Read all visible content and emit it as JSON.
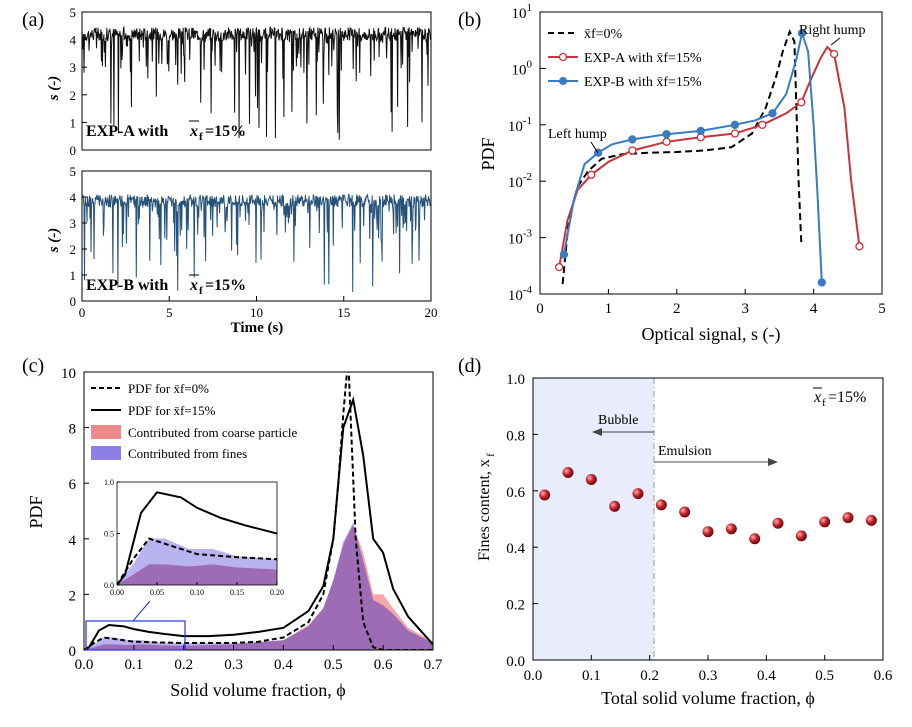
{
  "colors": {
    "expA": "#c8323a",
    "expB": "#3a7bbf",
    "traceA": "#111111",
    "traceB": "#26527a",
    "coarseFill": "#f08a8a",
    "finesFill": "#8c80e8",
    "overlap": "#8a4fa0",
    "dots": "#c0202a",
    "bubbleShade": "#e9ecfb",
    "inset_box": "#2233dd"
  },
  "panels": {
    "a": {
      "label": "(a)",
      "top_caption_bold": "EXP-A with",
      "bottom_caption_bold": "EXP-B with",
      "xf_symbol": "x",
      "xf_sub": "f",
      "xf_value": "=15%",
      "ylabel": "s (-)",
      "xlabel": "Time (s)"
    },
    "b": {
      "label": "(b)",
      "ylabel": "PDF",
      "xlabel": "Optical signal, s (-)",
      "annotations": {
        "left": "Left hump",
        "right": "Right hump"
      }
    },
    "c": {
      "label": "(c)",
      "ylabel": "PDF",
      "xlabel": "Solid volume fraction, ϕ"
    },
    "d": {
      "label": "(d)",
      "ylabel": "Fines content, x",
      "ylabel_sub": "f",
      "xlabel": "Total solid volume fraction, ϕ",
      "tag_value": "=15%",
      "bubble": "Bubble",
      "emulsion": "Emulsion"
    }
  },
  "chart_data": [
    {
      "panel": "a-top",
      "type": "line",
      "title": "",
      "xlabel": "",
      "ylabel": "s (-)",
      "xlim": [
        0,
        20
      ],
      "ylim": [
        0,
        5
      ],
      "x_ticks": [
        "0",
        "5",
        "10",
        "15",
        "20"
      ],
      "y_ticks": [
        "0",
        "1",
        "2",
        "3",
        "4",
        "5"
      ],
      "series": [
        {
          "name": "EXP-A with x̄f=15%",
          "baseline": 4.2,
          "description_level": "fluctuating optical signal mostly near 4 with downward spikes"
        }
      ]
    },
    {
      "panel": "a-bottom",
      "type": "line",
      "title": "",
      "xlabel": "Time (s)",
      "ylabel": "s (-)",
      "xlim": [
        0,
        20
      ],
      "ylim": [
        0,
        5
      ],
      "x_ticks": [
        "0",
        "5",
        "10",
        "15",
        "20"
      ],
      "y_ticks": [
        "0",
        "1",
        "2",
        "3",
        "4",
        "5"
      ],
      "series": [
        {
          "name": "EXP-B with x̄f=15%",
          "baseline": 3.85
        }
      ]
    },
    {
      "panel": "b",
      "type": "line",
      "xlabel": "Optical signal, s (-)",
      "ylabel": "PDF",
      "xlim": [
        0,
        5
      ],
      "ylim": [
        0.0001,
        10
      ],
      "yscale": "log",
      "x_ticks": [
        "0",
        "1",
        "2",
        "3",
        "4",
        "5"
      ],
      "y_ticks": [
        "10^-4",
        "10^-3",
        "10^-2",
        "10^-1",
        "10^0",
        "10^1"
      ],
      "legend": "top-left",
      "series": [
        {
          "name": "x̄f=0%",
          "style": "dashed",
          "x": [
            0.33,
            0.42,
            0.55,
            0.7,
            0.9,
            1.2,
            1.6,
            2.0,
            2.4,
            2.8,
            3.1,
            3.3,
            3.45,
            3.55,
            3.65,
            3.72,
            3.78,
            3.82
          ],
          "y": [
            0.00015,
            0.002,
            0.008,
            0.015,
            0.025,
            0.03,
            0.032,
            0.033,
            0.035,
            0.04,
            0.07,
            0.2,
            0.7,
            2.0,
            4.5,
            3.0,
            0.01,
            0.0008
          ]
        },
        {
          "name": "EXP-A with x̄f=15%",
          "style": "solid-open-circle",
          "x": [
            0.28,
            0.4,
            0.55,
            0.75,
            1.0,
            1.35,
            1.85,
            2.35,
            2.85,
            3.25,
            3.6,
            3.82,
            3.95,
            4.1,
            4.2,
            4.3,
            4.45,
            4.55,
            4.67
          ],
          "y": [
            0.0003,
            0.002,
            0.007,
            0.013,
            0.022,
            0.035,
            0.05,
            0.06,
            0.07,
            0.1,
            0.16,
            0.25,
            0.6,
            1.5,
            2.4,
            1.8,
            0.2,
            0.01,
            0.0007
          ],
          "markers_x": [
            0.28,
            0.75,
            1.35,
            1.85,
            2.35,
            2.85,
            3.25,
            3.82,
            4.3,
            4.67
          ],
          "markers_y": [
            0.0003,
            0.013,
            0.035,
            0.05,
            0.06,
            0.07,
            0.1,
            0.25,
            1.8,
            0.0007
          ]
        },
        {
          "name": "EXP-B with x̄f=15%",
          "style": "solid-filled-circle",
          "x": [
            0.35,
            0.5,
            0.65,
            0.85,
            1.05,
            1.35,
            1.85,
            2.35,
            2.85,
            3.15,
            3.4,
            3.6,
            3.75,
            3.83,
            3.92,
            4.0,
            4.06,
            4.12
          ],
          "y": [
            0.0005,
            0.005,
            0.02,
            0.032,
            0.045,
            0.055,
            0.068,
            0.078,
            0.1,
            0.12,
            0.16,
            0.35,
            1.5,
            4.2,
            2.0,
            0.1,
            0.005,
            0.00016
          ],
          "markers_x": [
            0.35,
            0.85,
            1.35,
            1.85,
            2.35,
            2.85,
            3.4,
            3.83,
            4.12
          ],
          "markers_y": [
            0.0005,
            0.032,
            0.055,
            0.068,
            0.078,
            0.1,
            0.16,
            4.2,
            0.00016
          ]
        }
      ]
    },
    {
      "panel": "c",
      "type": "area",
      "xlabel": "Solid volume fraction, ϕ",
      "ylabel": "PDF",
      "xlim": [
        0,
        0.7
      ],
      "ylim": [
        0,
        10
      ],
      "x_ticks": [
        "0.0",
        "0.1",
        "0.2",
        "0.3",
        "0.4",
        "0.5",
        "0.6",
        "0.7"
      ],
      "y_ticks": [
        "0",
        "2",
        "4",
        "6",
        "8",
        "10"
      ],
      "legend": "top-left",
      "series": [
        {
          "name": "PDF for x̄f=0%",
          "style": "dashed",
          "x": [
            0,
            0.02,
            0.04,
            0.06,
            0.1,
            0.15,
            0.2,
            0.3,
            0.35,
            0.4,
            0.45,
            0.48,
            0.5,
            0.51,
            0.52,
            0.53,
            0.545,
            0.56,
            0.58,
            0.6,
            0.7
          ],
          "y": [
            0,
            0.25,
            0.45,
            0.4,
            0.3,
            0.27,
            0.25,
            0.25,
            0.3,
            0.45,
            1.0,
            2.0,
            4.0,
            6.0,
            8.5,
            10.5,
            4.0,
            1.0,
            0.1,
            0,
            0
          ]
        },
        {
          "name": "PDF for x̄f=15%",
          "style": "solid",
          "x": [
            0,
            0.01,
            0.03,
            0.05,
            0.08,
            0.1,
            0.13,
            0.16,
            0.2,
            0.25,
            0.3,
            0.35,
            0.4,
            0.45,
            0.48,
            0.5,
            0.52,
            0.54,
            0.56,
            0.58,
            0.6,
            0.62,
            0.65,
            0.68,
            0.7
          ],
          "y": [
            0,
            0.1,
            0.7,
            0.9,
            0.85,
            0.75,
            0.65,
            0.58,
            0.5,
            0.5,
            0.55,
            0.65,
            0.8,
            1.4,
            2.3,
            4.0,
            8.0,
            9.0,
            7.0,
            4.0,
            3.5,
            2.2,
            1.2,
            0.6,
            0.2
          ]
        },
        {
          "name": "Contributed from coarse particle",
          "style": "fill",
          "x": [
            0,
            0.02,
            0.04,
            0.06,
            0.09,
            0.12,
            0.15,
            0.2,
            0.3,
            0.4,
            0.45,
            0.48,
            0.5,
            0.52,
            0.54,
            0.56,
            0.58,
            0.6,
            0.62,
            0.65,
            0.7
          ],
          "y": [
            0,
            0.1,
            0.2,
            0.2,
            0.18,
            0.2,
            0.17,
            0.15,
            0.2,
            0.35,
            0.9,
            1.5,
            2.5,
            3.8,
            4.5,
            3.5,
            2.0,
            2.0,
            1.5,
            0.8,
            0.3
          ]
        },
        {
          "name": "Contributed from fines",
          "style": "fill",
          "x": [
            0,
            0.02,
            0.04,
            0.06,
            0.09,
            0.12,
            0.15,
            0.2,
            0.3,
            0.4,
            0.45,
            0.48,
            0.5,
            0.52,
            0.54,
            0.56,
            0.58,
            0.6,
            0.62,
            0.65,
            0.7
          ],
          "y": [
            0,
            0.2,
            0.45,
            0.45,
            0.35,
            0.35,
            0.28,
            0.25,
            0.25,
            0.35,
            0.85,
            1.5,
            2.5,
            3.9,
            4.6,
            3.2,
            1.8,
            1.6,
            1.3,
            0.7,
            0.25
          ]
        }
      ],
      "inset": {
        "xlim": [
          0,
          0.2
        ],
        "ylim": [
          0,
          1.0
        ],
        "x_ticks": [
          "0.00",
          "0.05",
          "0.10",
          "0.15",
          "0.20"
        ],
        "y_ticks": [
          "0.0",
          "0.5",
          "1.0"
        ]
      }
    },
    {
      "panel": "d",
      "type": "scatter",
      "xlabel": "Total solid volume fraction, ϕ",
      "ylabel": "Fines content, xf",
      "xlim": [
        0,
        0.6
      ],
      "ylim": [
        0,
        1.0
      ],
      "x_ticks": [
        "0.0",
        "0.1",
        "0.2",
        "0.3",
        "0.4",
        "0.5",
        "0.6"
      ],
      "y_ticks": [
        "0.0",
        "0.2",
        "0.4",
        "0.6",
        "0.8",
        "1.0"
      ],
      "x": [
        0.02,
        0.06,
        0.1,
        0.14,
        0.18,
        0.22,
        0.26,
        0.3,
        0.34,
        0.38,
        0.42,
        0.46,
        0.5,
        0.54,
        0.58
      ],
      "y": [
        0.585,
        0.665,
        0.64,
        0.545,
        0.59,
        0.55,
        0.525,
        0.455,
        0.465,
        0.43,
        0.485,
        0.44,
        0.49,
        0.505,
        0.495
      ],
      "divider_x": 0.2
    }
  ]
}
